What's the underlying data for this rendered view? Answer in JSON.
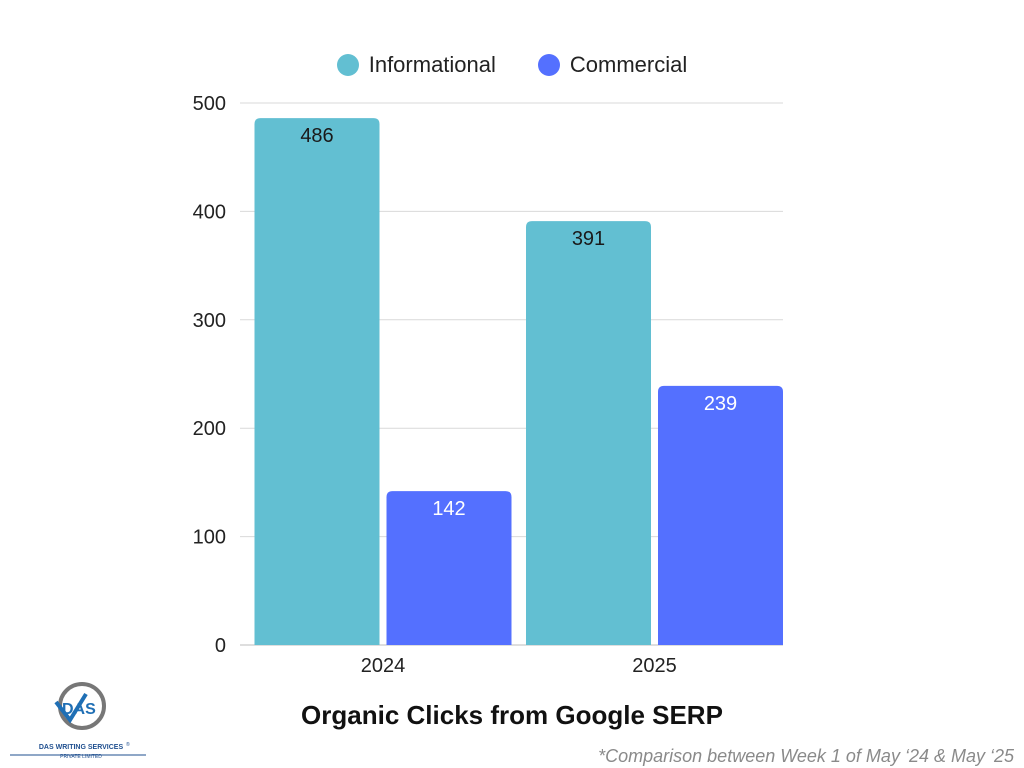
{
  "chart_data": {
    "type": "bar",
    "title": "Organic Clicks from Google SERP",
    "categories": [
      "2024",
      "2025"
    ],
    "series": [
      {
        "name": "Informational",
        "values": [
          486,
          391
        ],
        "color": "#62BFD2",
        "label_color": "#1a1a1a"
      },
      {
        "name": "Commercial",
        "values": [
          142,
          239
        ],
        "color": "#5470FF",
        "label_color": "#ffffff"
      }
    ],
    "ylim": [
      0,
      500
    ],
    "yticks": [
      0,
      100,
      200,
      300,
      400,
      500
    ],
    "grid": true,
    "legend_position": "top",
    "xlabel": "",
    "ylabel": ""
  },
  "footnote": "*Comparison between Week 1 of May ‘24 & May ‘25",
  "logo": {
    "mark_text": "DAS",
    "name_line1": "DAS WRITING SERVICES",
    "name_line2": "PRIVATE LIMITED",
    "registered": "®"
  }
}
